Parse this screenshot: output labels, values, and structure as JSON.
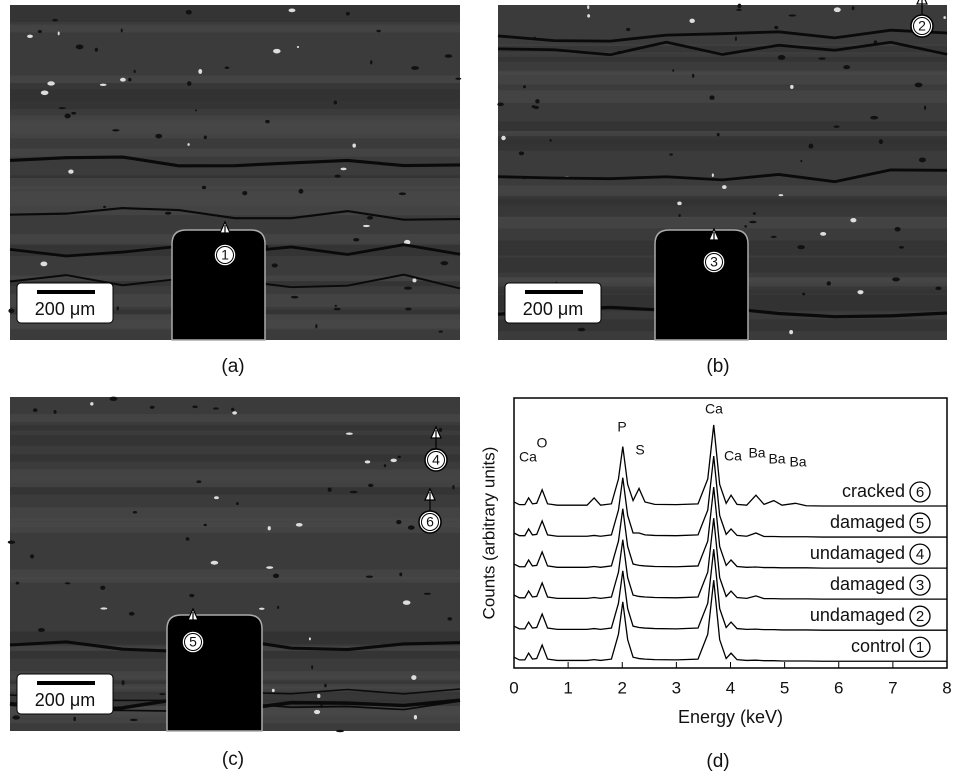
{
  "panels": [
    {
      "label": "(a)",
      "scale_bar": "200 μm",
      "markers": [
        "1"
      ]
    },
    {
      "label": "(b)",
      "scale_bar": "200 μm",
      "markers": [
        "2",
        "3"
      ]
    },
    {
      "label": "(c)",
      "scale_bar": "200 μm",
      "markers": [
        "4",
        "6",
        "5"
      ]
    }
  ],
  "chart_data": {
    "type": "line",
    "panel_label": "(d)",
    "x_label": "Energy (keV)",
    "y_label": "Counts (arbitrary units)",
    "xlim": [
      0,
      8
    ],
    "xticks": [
      0,
      1,
      2,
      3,
      4,
      5,
      6,
      7,
      8
    ],
    "ylim": [
      0,
      100
    ],
    "annotations": [
      "Ca",
      "O",
      "P",
      "S",
      "Ca",
      "Ca",
      "Ba",
      "Ba",
      "Ba"
    ],
    "x": [
      0,
      0.1,
      0.2,
      0.27,
      0.34,
      0.42,
      0.52,
      0.62,
      0.8,
      1.0,
      1.2,
      1.35,
      1.48,
      1.6,
      1.8,
      1.93,
      2.01,
      2.1,
      2.2,
      2.31,
      2.42,
      2.6,
      3.0,
      3.4,
      3.58,
      3.69,
      3.8,
      3.92,
      4.01,
      4.12,
      4.3,
      4.47,
      4.62,
      4.8,
      4.95,
      5.2,
      5.4,
      5.7,
      6.5,
      7.3,
      8
    ],
    "series": [
      {
        "name": "cracked",
        "marker": "6",
        "color": "#000000",
        "values": [
          61.5,
          60.5,
          60.5,
          63,
          60.8,
          61,
          66,
          60.8,
          60.3,
          60.3,
          60.3,
          60.3,
          63,
          60.3,
          60.8,
          70,
          82,
          68,
          62,
          66.5,
          61.5,
          60.6,
          60.5,
          60.8,
          70,
          90,
          68,
          61,
          64,
          60.6,
          60.3,
          64,
          60.6,
          62,
          60.3,
          61,
          60.1,
          60,
          60,
          60,
          60
        ]
      },
      {
        "name": "damaged",
        "marker": "5",
        "color": "#000000",
        "values": [
          50,
          49,
          49,
          51.5,
          49.3,
          49.5,
          54.5,
          49.3,
          48.8,
          48.8,
          48.8,
          48.8,
          49.1,
          48.8,
          49.3,
          58.5,
          70.5,
          56.5,
          50,
          50,
          49.3,
          49.1,
          49,
          49.3,
          58.5,
          78.5,
          56.5,
          49.5,
          51.5,
          49.1,
          48.8,
          50,
          48.7,
          48.7,
          48.6,
          48.6,
          48.6,
          48.5,
          48.5,
          48.5,
          48.5
        ]
      },
      {
        "name": "undamaged",
        "marker": "4",
        "color": "#000000",
        "values": [
          38.5,
          37.5,
          37.5,
          40,
          37.8,
          38,
          43,
          37.8,
          37.3,
          37.3,
          37.3,
          37.3,
          37.6,
          37.3,
          37.8,
          47,
          59,
          45,
          38.5,
          38,
          37.8,
          37.6,
          37.5,
          37.8,
          47,
          67,
          45,
          38,
          40,
          37.6,
          37.3,
          37.4,
          37.2,
          37.2,
          37.1,
          37.1,
          37.1,
          37,
          37,
          37,
          37
        ]
      },
      {
        "name": "damaged",
        "marker": "3",
        "color": "#000000",
        "values": [
          27,
          26,
          26,
          28.5,
          26.3,
          26.5,
          31.5,
          26.3,
          25.8,
          25.8,
          25.8,
          25.8,
          26.1,
          25.8,
          26.3,
          35.5,
          47.5,
          33.5,
          27,
          26.5,
          26.3,
          26.1,
          26,
          26.3,
          35.5,
          55.5,
          33.5,
          26.5,
          28.5,
          26.1,
          25.8,
          26.7,
          25.7,
          25.7,
          25.6,
          25.6,
          25.6,
          25.5,
          25.5,
          25.5,
          25.5
        ]
      },
      {
        "name": "undamaged",
        "marker": "2",
        "color": "#000000",
        "values": [
          15.5,
          14.5,
          14.5,
          17,
          14.8,
          15,
          20,
          14.8,
          14.3,
          14.3,
          14.3,
          14.3,
          14.6,
          14.3,
          14.8,
          24,
          36,
          22,
          15.5,
          15,
          14.8,
          14.6,
          14.5,
          14.8,
          24,
          44,
          22,
          15,
          17,
          14.6,
          14.3,
          14.4,
          14.2,
          14.2,
          14.1,
          14.1,
          14.1,
          14,
          14,
          14,
          14
        ]
      },
      {
        "name": "control",
        "marker": "1",
        "color": "#000000",
        "values": [
          4,
          3,
          3,
          5.5,
          3.3,
          3.5,
          8.5,
          3.3,
          2.8,
          2.8,
          2.8,
          2.8,
          3.1,
          2.8,
          3.3,
          12.5,
          24.5,
          10.5,
          4,
          3.5,
          3.3,
          3.1,
          3,
          3.3,
          12.5,
          32.5,
          10.5,
          3.5,
          5.5,
          3.1,
          2.8,
          2.9,
          2.7,
          2.7,
          2.6,
          2.6,
          2.6,
          2.5,
          2.5,
          2.5,
          2.5
        ]
      }
    ]
  }
}
